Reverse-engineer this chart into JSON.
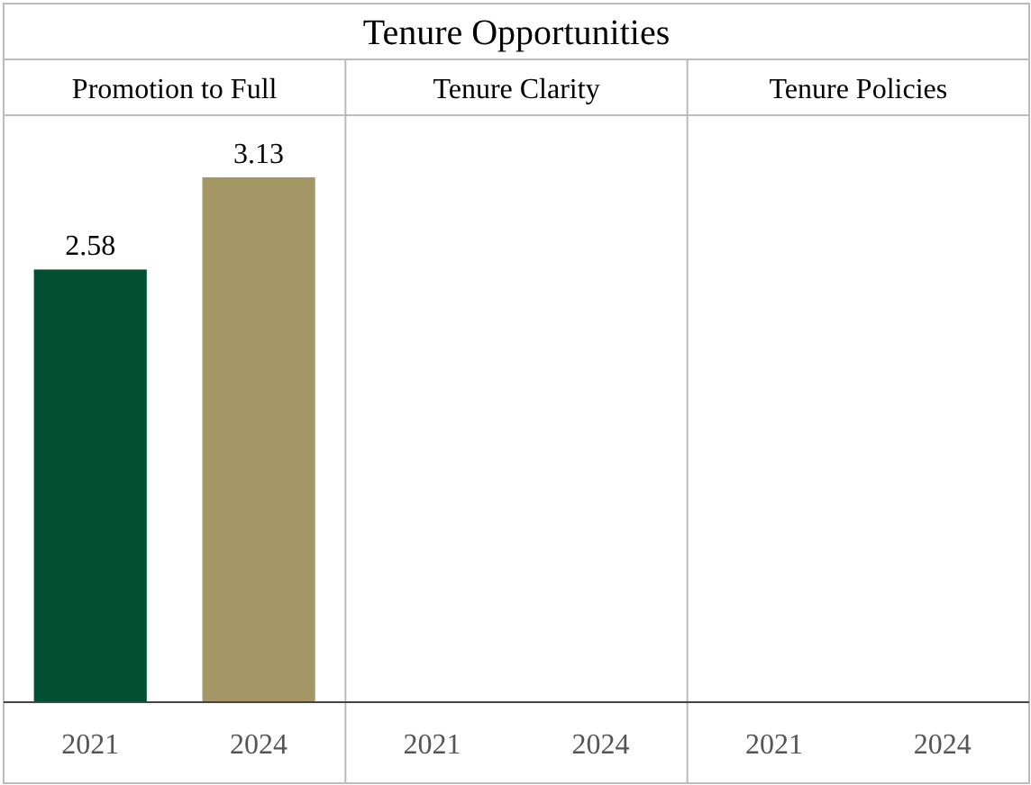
{
  "chart_data": [
    {
      "type": "other",
      "title": "Tenure Opportunities"
    },
    {
      "type": "bar",
      "title": "Promotion to Full",
      "categories": [
        "2021",
        "2024"
      ],
      "values": [
        2.58,
        3.13
      ],
      "colors": [
        "#034f33",
        "#a49665"
      ],
      "ylim": [
        0,
        3.5
      ],
      "data_labels": true,
      "tick_labels": "x"
    },
    {
      "type": "other",
      "title": "Tenure Clarity",
      "categories": [
        "2021",
        "2024"
      ]
    },
    {
      "type": "other",
      "title": "Tenure Policies",
      "categories": [
        "2021",
        "2024"
      ]
    }
  ]
}
